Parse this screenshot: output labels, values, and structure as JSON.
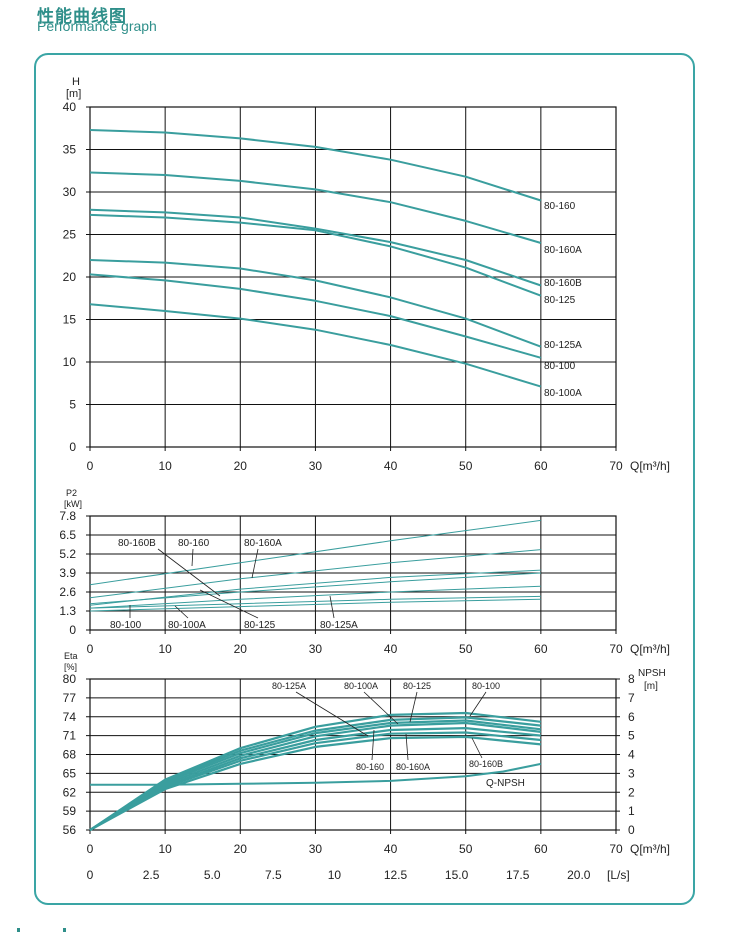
{
  "header": {
    "title_cn": "性能曲线图",
    "title_en": "Performance graph"
  },
  "chart_data": [
    {
      "type": "line",
      "ylabel_top": "H",
      "ylabel_unit": "[m]",
      "xlabel": "Q[m³/h]",
      "ylim": [
        0,
        40
      ],
      "xlim": [
        0,
        70
      ],
      "yticks": [
        "0",
        "5",
        "10",
        "15",
        "20",
        "25",
        "30",
        "35",
        "40"
      ],
      "xticks": [
        "0",
        "10",
        "20",
        "30",
        "40",
        "50",
        "60",
        "70"
      ],
      "grid": true,
      "series": [
        {
          "name": "80-160",
          "x": [
            0,
            10,
            20,
            30,
            40,
            50,
            60
          ],
          "y": [
            37.3,
            37,
            36.3,
            35.3,
            33.8,
            31.8,
            29.0
          ]
        },
        {
          "name": "80-160A",
          "x": [
            0,
            10,
            20,
            30,
            40,
            50,
            60
          ],
          "y": [
            32.3,
            32,
            31.3,
            30.3,
            28.8,
            26.6,
            24.0
          ]
        },
        {
          "name": "80-160B",
          "x": [
            0,
            10,
            20,
            30,
            40,
            50,
            60
          ],
          "y": [
            27.9,
            27.6,
            27.0,
            25.7,
            24.1,
            22.0,
            19.0
          ]
        },
        {
          "name": "80-125",
          "x": [
            0,
            10,
            20,
            30,
            40,
            50,
            60
          ],
          "y": [
            27.3,
            27.0,
            26.4,
            25.5,
            23.6,
            21.1,
            17.8
          ]
        },
        {
          "name": "80-125A",
          "x": [
            0,
            10,
            20,
            30,
            40,
            50,
            60
          ],
          "y": [
            22.0,
            21.7,
            21.0,
            19.6,
            17.6,
            15.1,
            11.8
          ]
        },
        {
          "name": "80-100",
          "x": [
            0,
            10,
            20,
            30,
            40,
            50,
            60
          ],
          "y": [
            20.3,
            19.6,
            18.6,
            17.2,
            15.4,
            13.0,
            10.5
          ]
        },
        {
          "name": "80-100A",
          "x": [
            0,
            10,
            20,
            30,
            40,
            50,
            60
          ],
          "y": [
            16.8,
            16.0,
            15.1,
            13.8,
            12.0,
            9.8,
            7.1
          ]
        }
      ]
    },
    {
      "type": "line",
      "ylabel_top": "P2",
      "ylabel_unit": "[kW]",
      "xlabel": "Q[m³/h]",
      "ylim": [
        0,
        7.8
      ],
      "xlim": [
        0,
        70
      ],
      "yticks": [
        "0",
        "1.3",
        "2.6",
        "3.9",
        "5.2",
        "6.5",
        "7.8"
      ],
      "xticks": [
        "0",
        "10",
        "20",
        "30",
        "40",
        "50",
        "60",
        "70"
      ],
      "grid": true,
      "series": [
        {
          "name": "80-160",
          "x": [
            0,
            20,
            40,
            60
          ],
          "y": [
            3.1,
            4.6,
            6.1,
            7.5
          ]
        },
        {
          "name": "80-160A",
          "x": [
            0,
            20,
            40,
            60
          ],
          "y": [
            2.2,
            3.5,
            4.6,
            5.5
          ]
        },
        {
          "name": "80-160B",
          "x": [
            0,
            20,
            40,
            60
          ],
          "y": [
            1.7,
            2.8,
            3.6,
            4.1
          ]
        },
        {
          "name": "80-125",
          "x": [
            0,
            20,
            40,
            60
          ],
          "y": [
            1.8,
            2.6,
            3.3,
            3.9
          ]
        },
        {
          "name": "80-125A",
          "x": [
            0,
            20,
            40,
            60
          ],
          "y": [
            1.5,
            2.1,
            2.6,
            3.0
          ]
        },
        {
          "name": "80-100",
          "x": [
            0,
            20,
            40,
            60
          ],
          "y": [
            1.5,
            1.8,
            2.1,
            2.3
          ]
        },
        {
          "name": "80-100A",
          "x": [
            0,
            20,
            40,
            60
          ],
          "y": [
            1.3,
            1.6,
            1.9,
            2.1
          ]
        }
      ]
    },
    {
      "type": "line",
      "ylabel_top": "Eta",
      "ylabel_unit": "[%]",
      "y2label_top": "NPSH",
      "y2label_unit": "[m]",
      "xlabel": "Q[m³/h]",
      "x2label": "[L/s]",
      "ylim": [
        56,
        80
      ],
      "y2lim": [
        0,
        8
      ],
      "xlim": [
        0,
        70
      ],
      "yticks": [
        "56",
        "59",
        "62",
        "65",
        "68",
        "71",
        "74",
        "77",
        "80"
      ],
      "y2ticks": [
        "0",
        "1",
        "2",
        "3",
        "4",
        "5",
        "6",
        "7",
        "8"
      ],
      "xticks": [
        "0",
        "10",
        "20",
        "30",
        "40",
        "50",
        "60",
        "70"
      ],
      "x2ticks": [
        "0",
        "2.5",
        "5.0",
        "7.5",
        "10",
        "12.5",
        "15.0",
        "17.5",
        "20.0"
      ],
      "grid": true,
      "series": [
        {
          "name": "80-125A",
          "x": [
            0,
            10,
            20,
            30,
            40,
            50,
            60
          ],
          "y": [
            56,
            64,
            69,
            72.4,
            74.3,
            74.6,
            73.2
          ]
        },
        {
          "name": "80-100A",
          "x": [
            0,
            10,
            20,
            30,
            40,
            50,
            60
          ],
          "y": [
            56,
            63.8,
            68.6,
            71.8,
            73.5,
            73.9,
            72.6
          ]
        },
        {
          "name": "80-125",
          "x": [
            0,
            10,
            20,
            30,
            40,
            50,
            60
          ],
          "y": [
            56,
            63.6,
            68.2,
            71.4,
            73.0,
            73.4,
            72.0
          ]
        },
        {
          "name": "80-100",
          "x": [
            0,
            10,
            20,
            30,
            40,
            50,
            60
          ],
          "y": [
            56,
            63.3,
            67.8,
            70.9,
            72.6,
            73.0,
            71.6
          ]
        },
        {
          "name": "80-160",
          "x": [
            0,
            10,
            20,
            30,
            40,
            50,
            60
          ],
          "y": [
            56,
            63,
            67.4,
            70.3,
            71.9,
            72.2,
            71.0
          ]
        },
        {
          "name": "80-160A",
          "x": [
            0,
            10,
            20,
            30,
            40,
            50,
            60
          ],
          "y": [
            56,
            62.8,
            67.0,
            69.8,
            71.3,
            71.5,
            70.3
          ]
        },
        {
          "name": "80-160B",
          "x": [
            0,
            10,
            20,
            30,
            40,
            50,
            60
          ],
          "y": [
            56,
            62.5,
            66.5,
            69.2,
            70.6,
            70.8,
            69.6
          ]
        }
      ],
      "npsh": {
        "name": "Q-NPSH",
        "x": [
          0,
          10,
          20,
          30,
          40,
          50,
          55,
          60
        ],
        "y": [
          2.4,
          2.4,
          2.45,
          2.5,
          2.6,
          2.85,
          3.1,
          3.5
        ]
      }
    }
  ]
}
